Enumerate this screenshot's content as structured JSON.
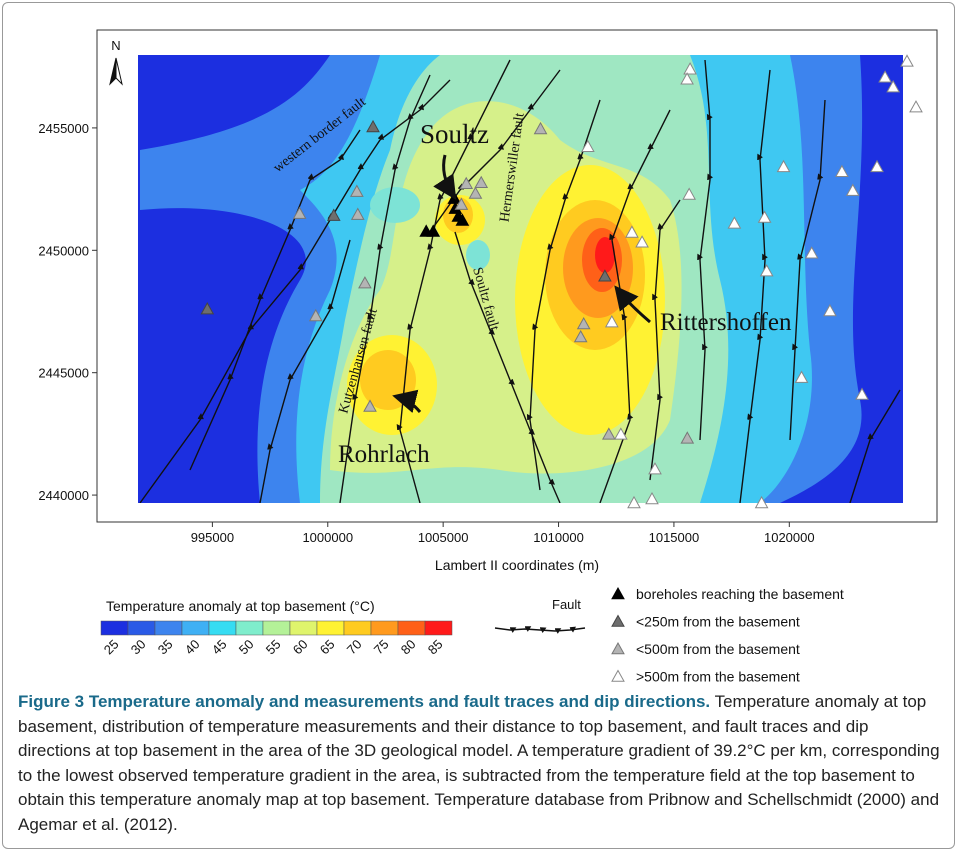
{
  "figure": {
    "north": "N",
    "x_axis": {
      "label": "Lambert II coordinates (m)",
      "xlim": [
        990000,
        1026400
      ],
      "ticks": [
        995000,
        1000000,
        1005000,
        1010000,
        1015000,
        1020000
      ]
    },
    "y_axis": {
      "ylim": [
        2438900,
        2459000
      ],
      "ticks": [
        2440000,
        2445000,
        2450000,
        2455000
      ]
    },
    "map_labels": {
      "western_border_fault": "western border fault",
      "soultz": "Soultz",
      "hermerswiller_fault": "Hermerswiller fault",
      "kutzenhausen_fault": "Kutzenhausen fault",
      "soultz_fault": "Soultz fault",
      "rittershoffen": "Rittershoffen",
      "rohrlach": "Rohrlach"
    },
    "colorbar": {
      "title": "Temperature anomaly at top basement (°C)",
      "ticks": [
        25,
        30,
        35,
        40,
        45,
        50,
        55,
        60,
        65,
        70,
        75,
        80,
        85
      ],
      "colors": [
        "#1c2fe0",
        "#2a5ae6",
        "#3d84ee",
        "#3fb0f4",
        "#36dcf2",
        "#7fedcc",
        "#b4f198",
        "#dff46c",
        "#fff233",
        "#ffcb20",
        "#ff9a1e",
        "#ff6018",
        "#ff1a1a"
      ]
    },
    "fault_legend": "Fault",
    "measurements": [
      {
        "label": "boreholes reaching the basement",
        "fill": "#000000",
        "stroke": "#000000",
        "x": [
          1004266,
          1004570,
          1005484,
          1005527,
          1005658,
          1005832
        ],
        "y": [
          2450772,
          2450772,
          2452114,
          2451707,
          2451382,
          2451220
        ]
      },
      {
        "label": "<250m from the basement",
        "fill": "#6e6e6e",
        "stroke": "#444444",
        "x": [
          994780,
          1000260,
          1001960,
          1012010
        ],
        "y": [
          2447600,
          2451420,
          2455040,
          2448940
        ]
      },
      {
        "label": "<500m from the basement",
        "fill": "#b4b4b4",
        "stroke": "#777777",
        "x": [
          998780,
          1001260,
          1001300,
          999480,
          1001610,
          1001830,
          1009220,
          1006000,
          1006650,
          1006400,
          1005790,
          1011090,
          1010960,
          1012180,
          1015580
        ],
        "y": [
          2451500,
          2452400,
          2451460,
          2447320,
          2448660,
          2443620,
          2454960,
          2452720,
          2452760,
          2452320,
          2451870,
          2446990,
          2446460,
          2442480,
          2442320
        ]
      },
      {
        "label": ">500m from the basement",
        "fill": "#ffffff",
        "stroke": "#888888",
        "x": [
          1015700,
          1015570,
          1013180,
          1013620,
          1011270,
          1012310,
          1012700,
          1015660,
          1017620,
          1018930,
          1019020,
          1019750,
          1020970,
          1021760,
          1022280,
          1023800,
          1022750,
          1020530,
          1014180,
          1014050,
          1013270,
          1018800,
          1023150,
          1025100,
          1025490,
          1024150,
          1024500
        ],
        "y": [
          2457400,
          2456990,
          2450730,
          2450330,
          2454230,
          2447070,
          2442480,
          2452280,
          2451100,
          2451340,
          2449150,
          2453410,
          2449880,
          2447520,
          2453210,
          2453410,
          2452440,
          2444800,
          2441060,
          2439840,
          2439680,
          2439680,
          2444110,
          2457720,
          2455850,
          2457070,
          2456670
        ]
      }
    ]
  },
  "caption": {
    "title": "Figure 3 Temperature anomaly and measurements and fault traces and dip directions.",
    "body": "Temperature anomaly at top basement, distribution of temperature measurements and their distance to top basement, and fault traces and dip directions at top basement in the area of the 3D geological model. A temperature gradient of 39.2°C per km, corresponding to the lowest observed temperature gradient in the area, is subtracted from the temperature field at the top basement to obtain this temperature anomaly map at top basement. Temperature database from Pribnow and Schellschmidt (2000) and Agemar et al. (2012)."
  }
}
